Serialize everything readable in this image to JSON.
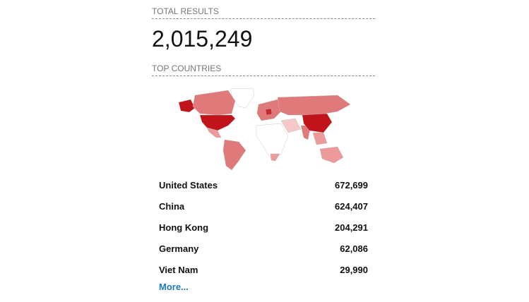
{
  "total_results": {
    "label": "TOTAL RESULTS",
    "value": "2,015,249"
  },
  "top_countries": {
    "label": "TOP COUNTRIES",
    "map_colors": {
      "highest": "#c0141a",
      "high": "#e07a7a",
      "medium": "#ec9a9a",
      "low": "#f6c9c9",
      "none": "#ffffff"
    },
    "items": [
      {
        "country": "United States",
        "count": "672,699"
      },
      {
        "country": "China",
        "count": "624,407"
      },
      {
        "country": "Hong Kong",
        "count": "204,291"
      },
      {
        "country": "Germany",
        "count": "62,086"
      },
      {
        "country": "Viet Nam",
        "count": "29,990"
      }
    ],
    "more_label": "More..."
  }
}
